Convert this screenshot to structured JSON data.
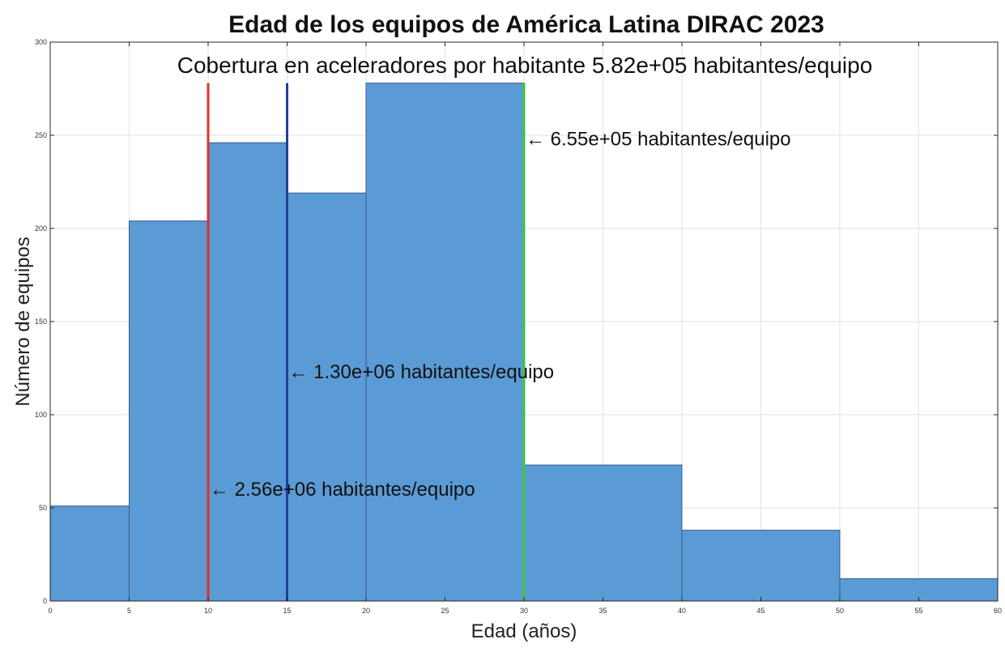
{
  "chart_data": {
    "type": "bar",
    "title": "Edad de los equipos de América Latina DIRAC 2023",
    "subtitle": "Cobertura en aceleradores por habitante 5.82e+05 habitantes/equipo",
    "xlabel": "Edad (años)",
    "ylabel": "Número de equipos",
    "xlim": [
      0,
      60
    ],
    "ylim": [
      0,
      300
    ],
    "xticks": [
      0,
      5,
      10,
      15,
      20,
      25,
      30,
      35,
      40,
      45,
      50,
      55,
      60
    ],
    "yticks": [
      0,
      50,
      100,
      150,
      200,
      250,
      300
    ],
    "grid": true,
    "bar_color": "#5b9bd5",
    "bins": [
      {
        "start": 0,
        "end": 5,
        "value": 51
      },
      {
        "start": 5,
        "end": 10,
        "value": 204
      },
      {
        "start": 10,
        "end": 15,
        "value": 246
      },
      {
        "start": 15,
        "end": 20,
        "value": 219
      },
      {
        "start": 20,
        "end": 30,
        "value": 278
      },
      {
        "start": 30,
        "end": 40,
        "value": 73
      },
      {
        "start": 40,
        "end": 50,
        "value": 38
      },
      {
        "start": 50,
        "end": 60,
        "value": 12
      }
    ],
    "vlines": [
      {
        "x": 10,
        "color": "#e0302a"
      },
      {
        "x": 15,
        "color": "#1f3f9a"
      },
      {
        "x": 30,
        "color": "#3ec63a"
      }
    ],
    "annotations": [
      {
        "text": "← 6.55e+05 habitantes/equipo",
        "x": 30,
        "y": 248
      },
      {
        "text": "← 1.30e+06 habitantes/equipo",
        "x": 15,
        "y": 123
      },
      {
        "text": "← 2.56e+06 habitantes/equipo",
        "x": 10,
        "y": 60
      }
    ]
  }
}
